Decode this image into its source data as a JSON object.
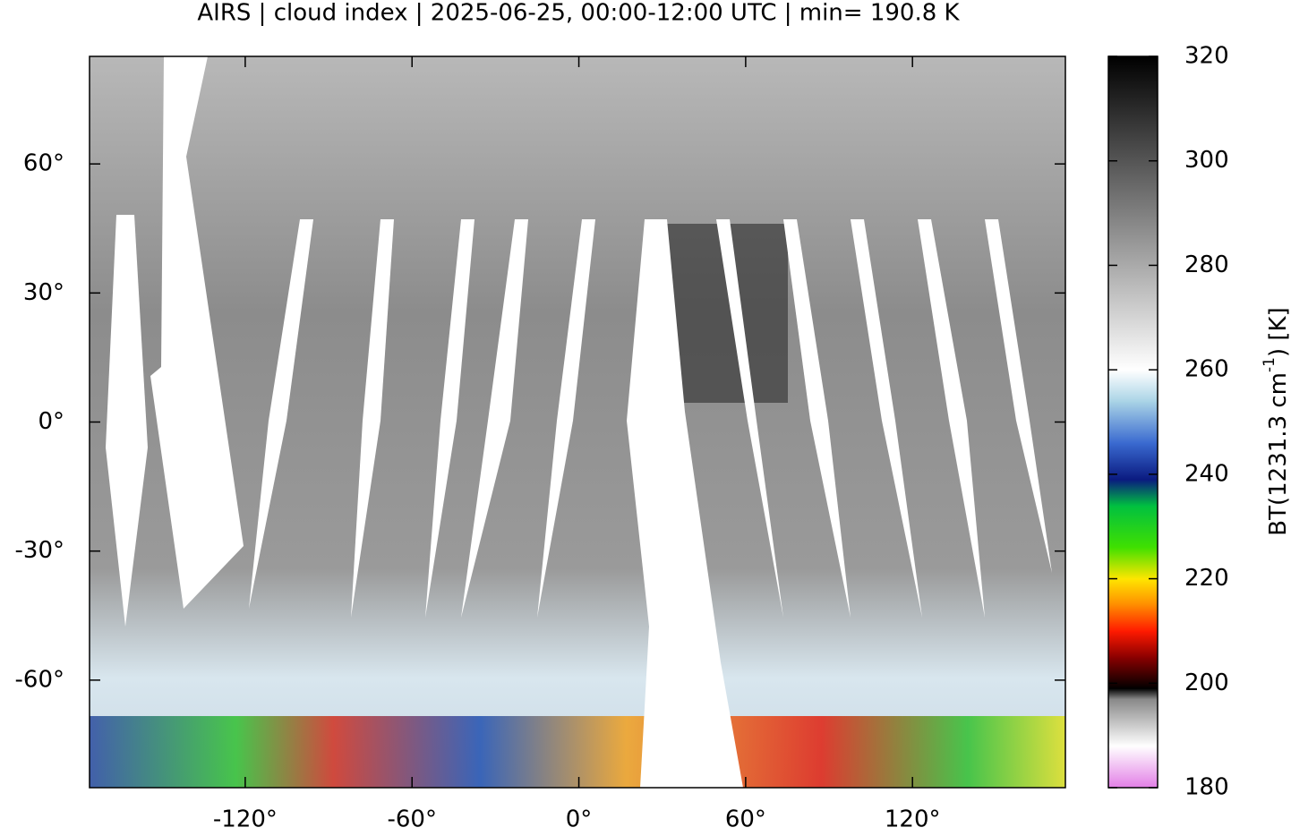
{
  "chart_data": {
    "type": "map",
    "title": "AIRS | cloud index | 2025-06-25, 00:00-12:00 UTC | min= 190.8 K",
    "xlim": [
      -176,
      175
    ],
    "ylim": [
      -85,
      85
    ],
    "xticks": [
      {
        "value": -120,
        "label": "-120°"
      },
      {
        "value": -60,
        "label": "-60°"
      },
      {
        "value": 0,
        "label": "0°"
      },
      {
        "value": 60,
        "label": "60°"
      },
      {
        "value": 120,
        "label": "120°"
      }
    ],
    "yticks": [
      {
        "value": -60,
        "label": "-60°"
      },
      {
        "value": -30,
        "label": "-30°"
      },
      {
        "value": 0,
        "label": "0°"
      },
      {
        "value": 30,
        "label": "30°"
      },
      {
        "value": 60,
        "label": "60°"
      }
    ],
    "colorbar": {
      "label_parts": [
        "BT(1231.3 cm",
        "-1",
        ") [K]"
      ],
      "lim": [
        180,
        320
      ],
      "ticks": [
        180,
        200,
        220,
        240,
        260,
        280,
        300,
        320
      ],
      "stops": [
        {
          "value": 180,
          "color": "#e27ee6"
        },
        {
          "value": 188,
          "color": "#ffffff"
        },
        {
          "value": 197,
          "color": "#888888"
        },
        {
          "value": 199,
          "color": "#000000"
        },
        {
          "value": 205,
          "color": "#8b0000"
        },
        {
          "value": 210,
          "color": "#ff1a00"
        },
        {
          "value": 215,
          "color": "#ff8c00"
        },
        {
          "value": 220,
          "color": "#ffe600"
        },
        {
          "value": 226,
          "color": "#40e000"
        },
        {
          "value": 234,
          "color": "#00c040"
        },
        {
          "value": 239,
          "color": "#0a1a80"
        },
        {
          "value": 246,
          "color": "#3a6ad0"
        },
        {
          "value": 254,
          "color": "#aad4e6"
        },
        {
          "value": 260,
          "color": "#ffffff"
        },
        {
          "value": 320,
          "color": "#000000"
        }
      ]
    }
  }
}
